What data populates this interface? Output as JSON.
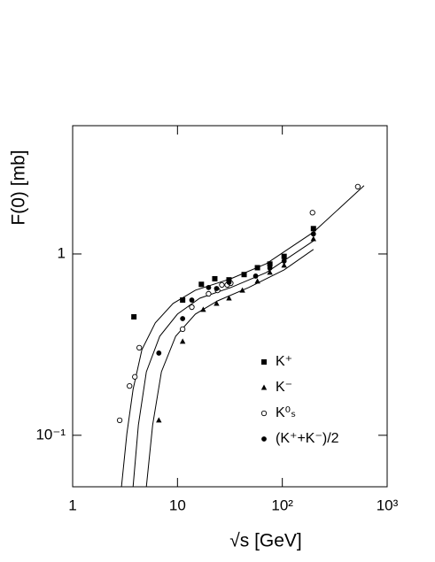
{
  "chart_data": {
    "type": "scatter",
    "xlabel": "√s [GeV]",
    "ylabel": "F(0) [mb]",
    "xscale": "log",
    "yscale": "log",
    "xlim": [
      1,
      1000
    ],
    "ylim": [
      0.052,
      5.1
    ],
    "xticks": [
      1,
      10,
      {
        "value": 100,
        "label": "10²"
      },
      {
        "value": 1000,
        "label": "10³"
      }
    ],
    "yticks": [
      {
        "value": 0.1,
        "label": "10⁻¹"
      },
      1
    ],
    "legend": "lower right",
    "series": [
      {
        "name": "K⁺",
        "marker": "square",
        "color": "#000000",
        "x": [
          3.84,
          11.2,
          16.9,
          22.7,
          31.0,
          43.2,
          57.9,
          76.1,
          104,
          198
        ],
        "values": [
          0.45,
          0.557,
          0.68,
          0.73,
          0.72,
          0.77,
          0.84,
          0.88,
          0.97,
          1.38
        ]
      },
      {
        "name": "K⁻",
        "marker": "triangle",
        "color": "#000000",
        "x": [
          6.64,
          11.2,
          17.6,
          23.6,
          31.0,
          41.6,
          57.9,
          76.1,
          104,
          198
        ],
        "values": [
          0.121,
          0.329,
          0.493,
          0.533,
          0.57,
          0.63,
          0.706,
          0.79,
          0.865,
          1.21
        ]
      },
      {
        "name": "K⁰ₛ",
        "marker": "circle-open",
        "color": "#000000",
        "x": [
          2.81,
          3.49,
          3.92,
          4.32,
          11.2,
          13.7,
          19.8,
          24.1,
          26.5,
          29.8,
          32.2,
          194,
          525
        ],
        "values": [
          0.121,
          0.187,
          0.21,
          0.304,
          0.385,
          0.509,
          0.603,
          0.63,
          0.675,
          0.675,
          0.69,
          1.69,
          2.35
        ]
      },
      {
        "name": "(K⁺+K⁻)/2",
        "marker": "circle",
        "color": "#000000",
        "x": [
          6.64,
          11.2,
          13.7,
          19.8,
          23.6,
          31.0,
          55.7,
          76.1,
          104,
          198
        ],
        "values": [
          0.284,
          0.44,
          0.557,
          0.653,
          0.645,
          0.698,
          0.755,
          0.836,
          0.914,
          1.29
        ]
      }
    ],
    "curves": [
      {
        "color": "#000000",
        "x": [
          2.92,
          3.29,
          3.77,
          4.58,
          6.14,
          9.07,
          14.8,
          32.2,
          70.3,
          198,
          602
        ],
        "values": [
          0.052,
          0.102,
          0.179,
          0.297,
          0.417,
          0.533,
          0.631,
          0.73,
          0.884,
          1.32,
          2.38
        ]
      },
      {
        "color": "#000000",
        "x": [
          3.77,
          4.24,
          5.05,
          6.77,
          10,
          16.3,
          32.2,
          70.3,
          198
        ],
        "values": [
          0.052,
          0.114,
          0.224,
          0.352,
          0.466,
          0.57,
          0.653,
          0.79,
          1.18
        ]
      },
      {
        "color": "#000000",
        "x": [
          5.05,
          5.79,
          7.03,
          9.62,
          14.8,
          24.1,
          47.6,
          104,
          198
        ],
        "values": [
          0.052,
          0.114,
          0.224,
          0.352,
          0.466,
          0.551,
          0.653,
          0.817,
          1.06
        ]
      }
    ]
  }
}
